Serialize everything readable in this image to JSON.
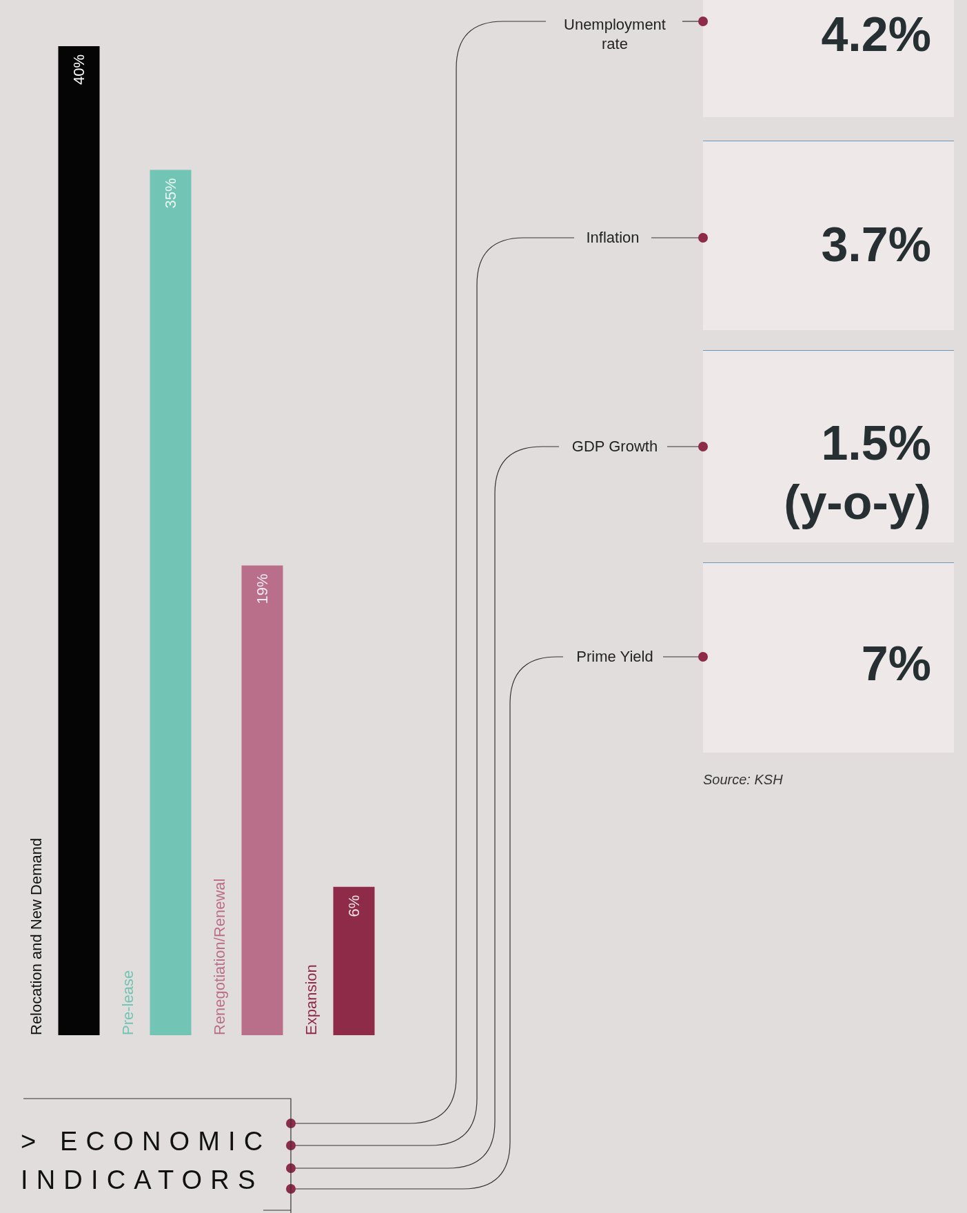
{
  "chart_data": [
    {
      "type": "bar",
      "categories": [
        "Relocation and New Demand",
        "Pre-lease",
        "Renegotiation/Renewal",
        "Expansion"
      ],
      "values": [
        40,
        35,
        19,
        6
      ],
      "colors": [
        "#050505",
        "#72c4b4",
        "#b96e89",
        "#8e2b48"
      ],
      "value_labels": [
        "40%",
        "35%",
        "19%",
        "6%"
      ],
      "ylim": [
        0,
        40
      ],
      "tick_labels": false
    },
    {
      "type": "other",
      "title": "> ECONOMIC INDICATORS",
      "categories": [
        "Unemployment rate",
        "Inflation",
        "GDP Growth",
        "Prime Yield"
      ],
      "value_labels": [
        "4.2%",
        "3.7%",
        "1.5% (y-o-y)",
        "7%"
      ],
      "annotations": [
        "Source: KSH"
      ]
    }
  ]
}
